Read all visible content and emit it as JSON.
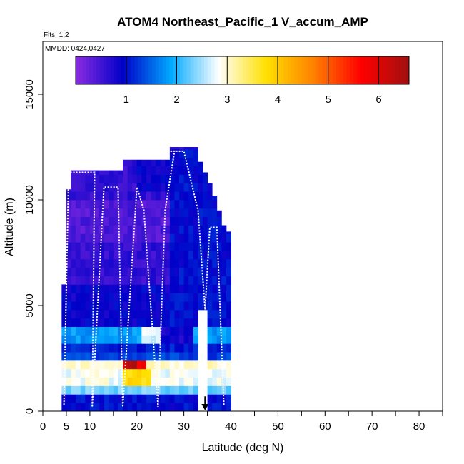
{
  "chart_data": {
    "type": "heatmap",
    "title": "ATOM4 Northeast_Pacific_1 V_accum_AMP",
    "flights_note": "Flts: 1,2",
    "date_note": "MMDD: 0424,0427",
    "xlabel": "Latitude (deg N)",
    "ylabel": "Altitude (m)",
    "xlim": [
      0,
      85
    ],
    "ylim": [
      0,
      17500
    ],
    "x_ticks": [
      0,
      5,
      10,
      20,
      30,
      40,
      50,
      60,
      70,
      80
    ],
    "x_tick_labels": [
      "0",
      "5",
      "10",
      "20",
      "30",
      "40",
      "50",
      "60",
      "70",
      "80"
    ],
    "x_minor_ticks": [
      15,
      25,
      35,
      45,
      55,
      65,
      75,
      85
    ],
    "y_ticks": [
      0,
      5000,
      10000,
      15000
    ],
    "y_tick_labels": [
      "0",
      "5000",
      "10000",
      "15000"
    ],
    "colorbar": {
      "range": [
        0,
        6.6
      ],
      "ticks": [
        1,
        2,
        3,
        4,
        5,
        6
      ],
      "tick_labels": [
        "1",
        "2",
        "3",
        "4",
        "5",
        "6"
      ],
      "colors": [
        "#8a2be2",
        "#0000c8",
        "#00aaff",
        "#ffffff",
        "#ffe000",
        "#ff8000",
        "#ff0000",
        "#a01010"
      ]
    },
    "column_tops": [
      {
        "lat": 4,
        "top": 6000
      },
      {
        "lat": 5,
        "top": 10500
      },
      {
        "lat": 6,
        "top": 11400
      },
      {
        "lat": 8,
        "top": 11400
      },
      {
        "lat": 10,
        "top": 11400
      },
      {
        "lat": 12,
        "top": 11400
      },
      {
        "lat": 14,
        "top": 11400
      },
      {
        "lat": 16,
        "top": 11400
      },
      {
        "lat": 17,
        "top": 11900
      },
      {
        "lat": 20,
        "top": 11900
      },
      {
        "lat": 22,
        "top": 11900
      },
      {
        "lat": 24,
        "top": 11900
      },
      {
        "lat": 25,
        "top": 11900
      },
      {
        "lat": 27,
        "top": 12500
      },
      {
        "lat": 30,
        "top": 12500
      },
      {
        "lat": 32,
        "top": 12500
      },
      {
        "lat": 33,
        "top": 11800
      },
      {
        "lat": 34,
        "top": 11300
      },
      {
        "lat": 35,
        "top": 10800
      },
      {
        "lat": 36,
        "top": 10200
      },
      {
        "lat": 37,
        "top": 9500
      },
      {
        "lat": 38,
        "top": 8800
      },
      {
        "lat": 39,
        "top": 8500
      },
      {
        "lat": 40,
        "top": 8000
      }
    ],
    "bottom_gap": {
      "from_lat": 33,
      "to_lat": 35,
      "bottom": 4500
    },
    "layers": [
      {
        "y0": 0,
        "y1": 700,
        "value": 1.0
      },
      {
        "y0": 700,
        "y1": 1300,
        "value": 2.3
      },
      {
        "y0": 1300,
        "y1": 1900,
        "value": 2.8
      },
      {
        "y0": 1900,
        "y1": 2500,
        "value": 3.0
      },
      {
        "y0": 2500,
        "y1": 3000,
        "value": 1.3
      },
      {
        "y0": 3000,
        "y1": 3400,
        "value": 1.1
      },
      {
        "y0": 3400,
        "y1": 4200,
        "value": 1.8
      },
      {
        "y0": 4200,
        "y1": 6000,
        "value": 0.9
      },
      {
        "y0": 6000,
        "y1": 8000,
        "value": 0.6
      },
      {
        "y0": 8000,
        "y1": 10000,
        "value": 0.4
      },
      {
        "y0": 10000,
        "y1": 12500,
        "value": 0.6
      }
    ],
    "hotspots": [
      {
        "lat0": 17,
        "lat1": 22,
        "y0": 1900,
        "y1": 2600,
        "value": 5.8
      },
      {
        "lat0": 18,
        "lat1": 20,
        "y0": 2000,
        "y1": 2500,
        "value": 6.5
      },
      {
        "lat0": 17,
        "lat1": 23,
        "y0": 1300,
        "y1": 1900,
        "value": 3.8
      },
      {
        "lat0": 21,
        "lat1": 26,
        "y0": 3400,
        "y1": 4200,
        "value": 2.7
      },
      {
        "lat0": 9,
        "lat1": 14,
        "y0": 1300,
        "y1": 1900,
        "value": 2.9
      },
      {
        "lat0": 25,
        "lat1": 32,
        "y0": 3300,
        "y1": 4200,
        "value": 0.8
      },
      {
        "lat0": 27,
        "lat1": 40,
        "y0": 4200,
        "y1": 12500,
        "value": 1.0
      },
      {
        "lat0": 20,
        "lat1": 27,
        "y0": 10400,
        "y1": 11900,
        "value": 0.9
      }
    ],
    "flight_track": {
      "lat": [
        4.5,
        5.5,
        8,
        11,
        10.5,
        13,
        16,
        17,
        20,
        21.5,
        24.5,
        26,
        28,
        27,
        30,
        33,
        34.5,
        35.5,
        37,
        38.5
      ],
      "alt": [
        300,
        11300,
        11300,
        11300,
        200,
        10600,
        10600,
        200,
        10600,
        9500,
        200,
        9500,
        12300,
        12300,
        12300,
        9500,
        4800,
        8700,
        8700,
        300
      ]
    },
    "arrow": {
      "lat": 34.5,
      "alt_from": 700,
      "alt_to": 0
    }
  }
}
